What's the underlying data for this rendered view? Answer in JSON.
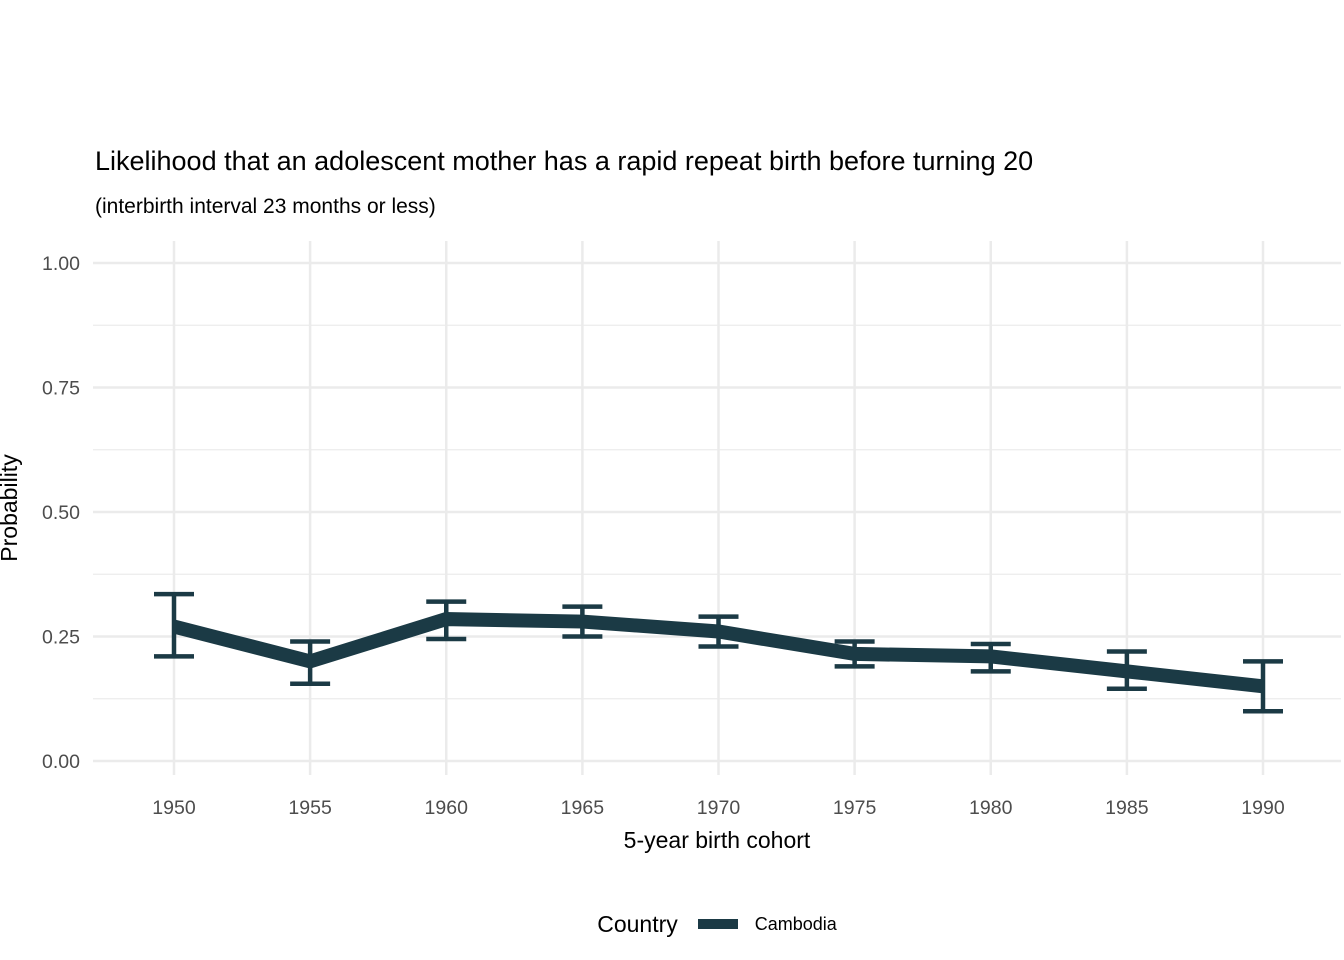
{
  "title": "Likelihood that an adolescent mother has a rapid repeat birth before turning 20",
  "subtitle": "(interbirth interval 23 months or less)",
  "y_axis": {
    "label": "Probability"
  },
  "x_axis": {
    "label": "5-year birth cohort"
  },
  "legend": {
    "title": "Country",
    "items": [
      {
        "label": "Cambodia",
        "color": "#1b3a45"
      }
    ]
  },
  "colors": {
    "background": "#ffffff",
    "grid": "#ebebeb",
    "tick_label": "#4d4d4d",
    "text": "#000000",
    "line": "#1b3a45"
  },
  "chart_data": {
    "type": "line",
    "title": "Likelihood that an adolescent mother has a rapid repeat birth before turning 20",
    "subtitle": "(interbirth interval 23 months or less)",
    "xlabel": "5-year birth cohort",
    "ylabel": "Probability",
    "x": [
      1950,
      1955,
      1960,
      1965,
      1970,
      1975,
      1980,
      1985,
      1990
    ],
    "x_tick_labels": [
      "1950",
      "1955",
      "1960",
      "1965",
      "1970",
      "1975",
      "1980",
      "1985",
      "1990"
    ],
    "y_ticks": [
      0.0,
      0.25,
      0.5,
      0.75,
      1.0
    ],
    "y_tick_labels": [
      "0.00",
      "0.25",
      "0.50",
      "0.75",
      "1.00"
    ],
    "y_minor_ticks": [
      0.125,
      0.375,
      0.625,
      0.875
    ],
    "ylim": [
      0,
      1
    ],
    "xlim": [
      1947,
      1993
    ],
    "grid": true,
    "legend_position": "bottom",
    "series": [
      {
        "name": "Cambodia",
        "color": "#1b3a45",
        "error_bars": true,
        "values": [
          0.27,
          0.2,
          0.285,
          0.28,
          0.26,
          0.215,
          0.21,
          0.18,
          0.15
        ],
        "ci_lower": [
          0.21,
          0.155,
          0.245,
          0.25,
          0.23,
          0.19,
          0.18,
          0.145,
          0.1
        ],
        "ci_upper": [
          0.335,
          0.24,
          0.32,
          0.31,
          0.29,
          0.24,
          0.235,
          0.22,
          0.2
        ]
      }
    ]
  }
}
